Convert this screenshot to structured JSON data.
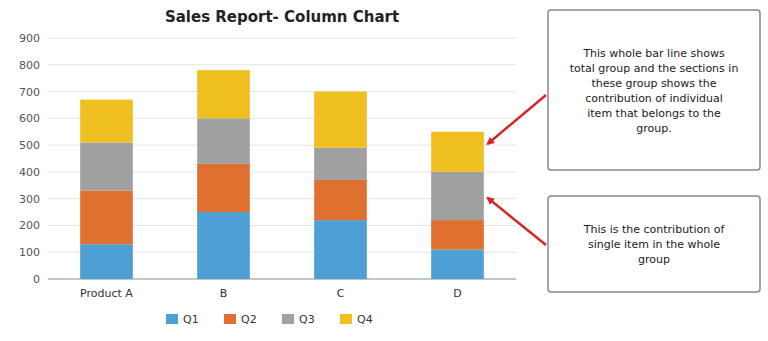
{
  "chart_data": {
    "type": "bar",
    "title": "Sales Report- Column Chart",
    "categories": [
      "Product A",
      "B",
      "C",
      "D"
    ],
    "series": [
      {
        "name": "Q1",
        "color": "#4e9fd4",
        "values": [
          130,
          250,
          220,
          110
        ]
      },
      {
        "name": "Q2",
        "color": "#e07030",
        "values": [
          200,
          180,
          150,
          110
        ]
      },
      {
        "name": "Q3",
        "color": "#a0a0a0",
        "values": [
          180,
          170,
          120,
          180
        ]
      },
      {
        "name": "Q4",
        "color": "#f0c020",
        "values": [
          160,
          180,
          210,
          150
        ]
      }
    ],
    "stacked": true,
    "ylim": [
      0,
      900
    ],
    "yticks": [
      0,
      100,
      200,
      300,
      400,
      500,
      600,
      700,
      800,
      900
    ],
    "grid": true,
    "legend": "bottom",
    "annotations": [
      "This whole bar line shows\ntotal group and the sections in\nthese group shows the\ncontribution of individual\nitem that belongs to the\ngroup.",
      "This is the contribution of\nsingle item in the whole\ngroup"
    ]
  }
}
